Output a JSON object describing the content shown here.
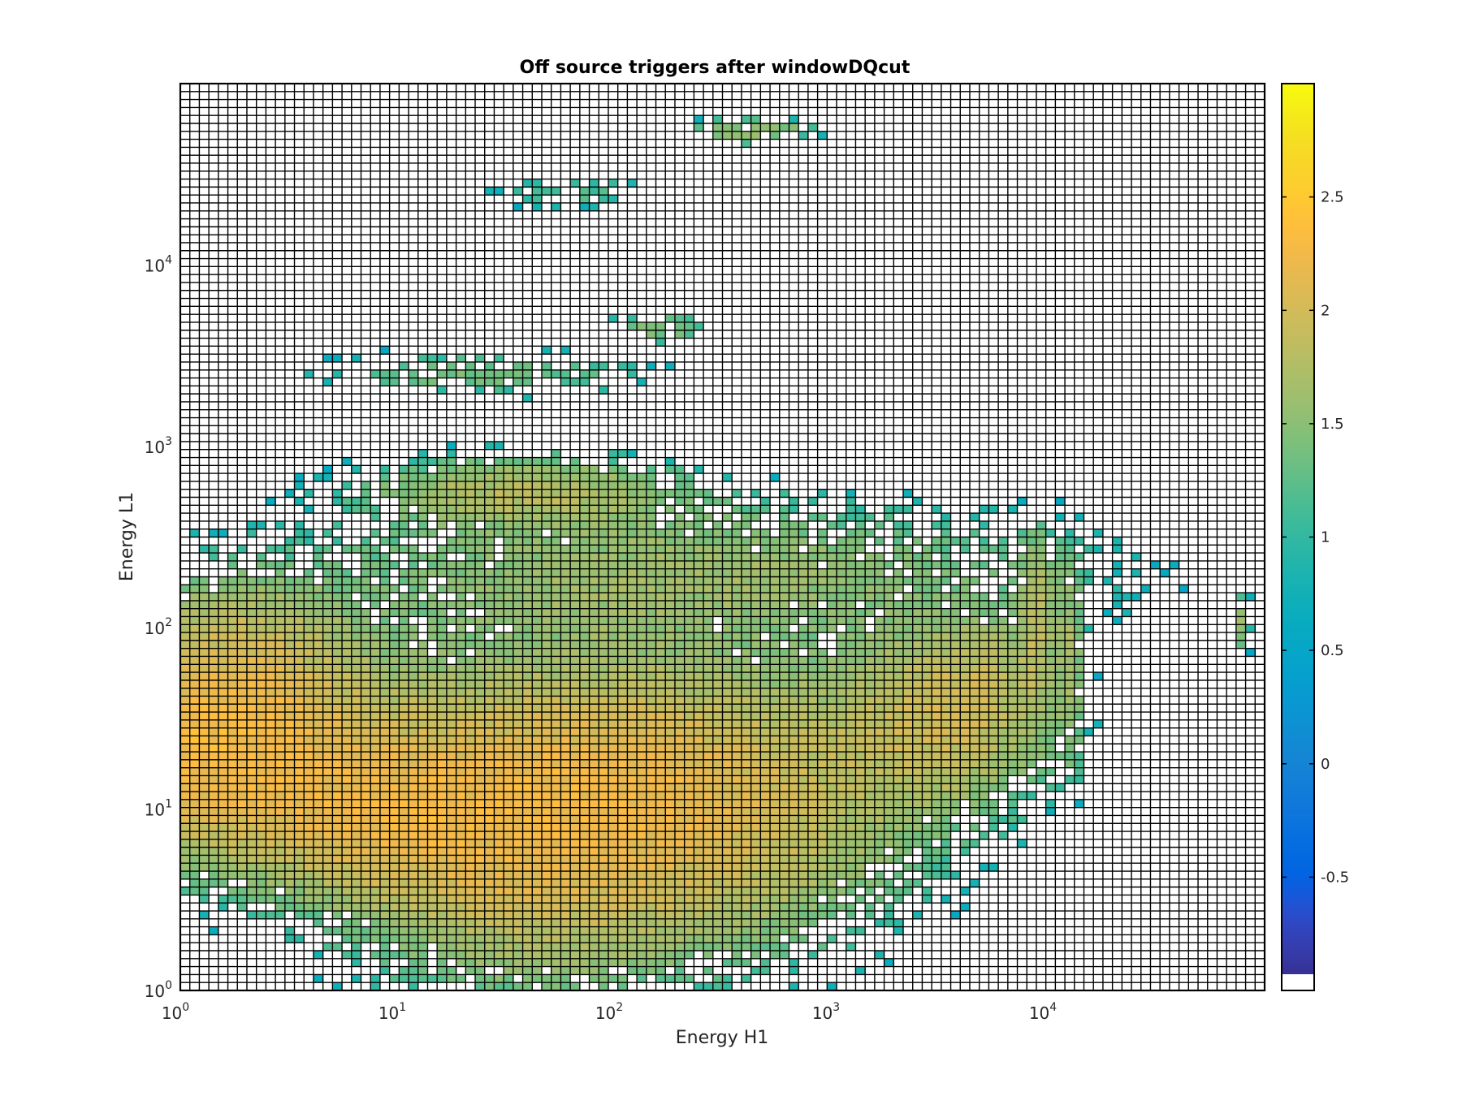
{
  "chart_data": {
    "type": "heatmap",
    "title": "Off source triggers after windowDQcut",
    "xlabel": "Energy H1",
    "ylabel": "Energy L1",
    "x_scale": "log",
    "y_scale": "log",
    "xlim": [
      1,
      100000
    ],
    "ylim": [
      1,
      100000
    ],
    "x_ticks": [
      {
        "base": "10",
        "exp": "0",
        "value": 1
      },
      {
        "base": "10",
        "exp": "1",
        "value": 10
      },
      {
        "base": "10",
        "exp": "2",
        "value": 100
      },
      {
        "base": "10",
        "exp": "3",
        "value": 1000
      },
      {
        "base": "10",
        "exp": "4",
        "value": 10000
      }
    ],
    "y_ticks": [
      {
        "base": "10",
        "exp": "0",
        "value": 1
      },
      {
        "base": "10",
        "exp": "1",
        "value": 10
      },
      {
        "base": "10",
        "exp": "2",
        "value": 100
      },
      {
        "base": "10",
        "exp": "3",
        "value": 1000
      },
      {
        "base": "10",
        "exp": "4",
        "value": 10000
      }
    ],
    "bins_per_axis": 114,
    "value_quantity": "log10 count",
    "empty_bin_value": -1,
    "colorbar": {
      "colormap": "parula",
      "range": [
        -1,
        3
      ],
      "ticks": [
        "-0.5",
        "0",
        "0.5",
        "1",
        "1.5",
        "2",
        "2.5"
      ],
      "tick_values": [
        -0.5,
        0,
        0.5,
        1,
        1.5,
        2,
        2.5
      ]
    },
    "density_model": {
      "description": "approximate log10 count per bin, summed gaussian blobs in log10 energy space",
      "blobs": [
        {
          "x": 0.18,
          "y": 1.35,
          "sx": 0.45,
          "sy": 0.35,
          "amp": 2.4
        },
        {
          "x": 0.95,
          "y": 0.95,
          "sx": 0.35,
          "sy": 0.25,
          "amp": 1.3
        },
        {
          "x": 1.55,
          "y": 0.95,
          "sx": 0.5,
          "sy": 0.5,
          "amp": 1.3
        },
        {
          "x": 2.3,
          "y": 1.05,
          "sx": 0.6,
          "sy": 0.45,
          "amp": 1.5
        },
        {
          "x": 3.5,
          "y": 1.5,
          "sx": 0.3,
          "sy": 0.3,
          "amp": 1.0
        },
        {
          "x": 3.7,
          "y": 1.75,
          "sx": 0.15,
          "sy": 0.2,
          "amp": 0.4
        },
        {
          "x": 2.3,
          "y": 2.3,
          "sx": 1.1,
          "sy": 0.25,
          "amp": 0.5
        },
        {
          "x": 0.3,
          "y": 1.9,
          "sx": 0.3,
          "sy": 0.25,
          "amp": 0.55
        }
      ],
      "tails": [
        {
          "x": 1.6,
          "y": 2.75,
          "sx": 0.45,
          "sy": 0.12,
          "amp": 0.7
        },
        {
          "x": 1.4,
          "y": 3.4,
          "sx": 0.5,
          "sy": 0.08,
          "amp": 0.3
        },
        {
          "x": 2.2,
          "y": 3.65,
          "sx": 0.15,
          "sy": 0.05,
          "amp": 0.4
        },
        {
          "x": 1.8,
          "y": 4.4,
          "sx": 0.25,
          "sy": 0.06,
          "amp": 0.2
        },
        {
          "x": 2.65,
          "y": 4.75,
          "sx": 0.2,
          "sy": 0.04,
          "amp": 0.4
        },
        {
          "x": 2.55,
          "y": 4.7,
          "sx": 0.15,
          "sy": 0.03,
          "amp": 0.2
        },
        {
          "x": 3.95,
          "y": 2.0,
          "sx": 0.05,
          "sy": 0.3,
          "amp": 0.7
        },
        {
          "x": 4.1,
          "y": 1.8,
          "sx": 0.04,
          "sy": 0.35,
          "amp": 0.5
        },
        {
          "x": 4.9,
          "y": 2.0,
          "sx": 0.02,
          "sy": 0.1,
          "amp": 0.5
        }
      ],
      "presence_threshold": 0.05
    }
  }
}
